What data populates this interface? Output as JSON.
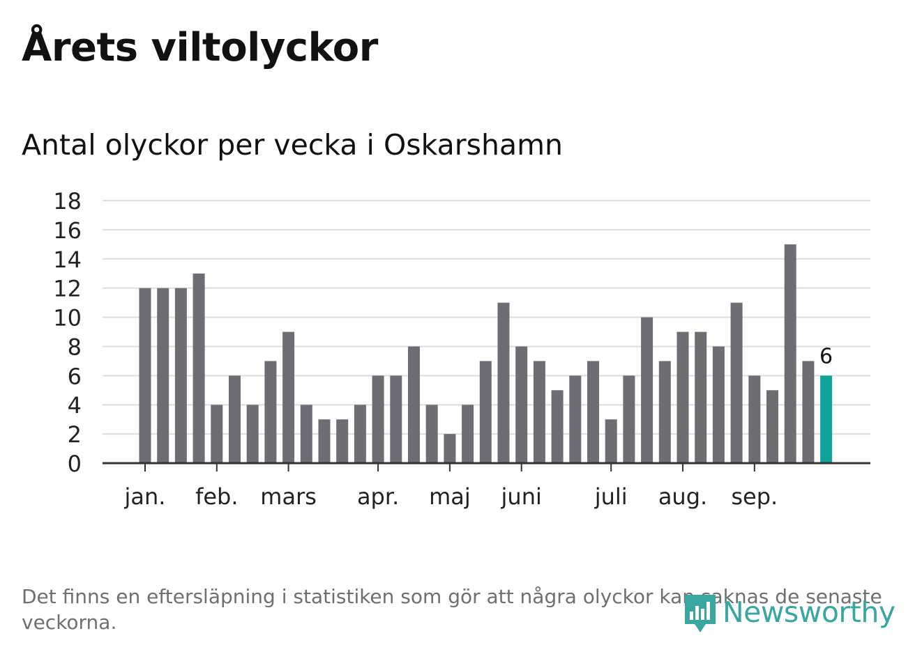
{
  "title": "Årets viltolyckor",
  "subtitle": "Antal olyckor per vecka i Oskarshamn",
  "note": "Det finns en eftersläpning i statistiken som gör att några olyckor kan saknas de senaste veckorna.",
  "brand": {
    "name": "Newsworthy",
    "icon": "newsworthy-bar-chart-icon",
    "color": "#3aa6a0"
  },
  "colors": {
    "bar": "#6e6d74",
    "highlight": "#0fa39a",
    "grid": "#dddddd",
    "axis": "#333333"
  },
  "chart_data": {
    "type": "bar",
    "title": "Årets viltolyckor",
    "subtitle": "Antal olyckor per vecka i Oskarshamn",
    "values": [
      12,
      12,
      12,
      13,
      4,
      6,
      4,
      7,
      9,
      4,
      3,
      3,
      4,
      6,
      6,
      8,
      4,
      2,
      4,
      7,
      11,
      8,
      7,
      5,
      6,
      7,
      3,
      6,
      10,
      7,
      9,
      9,
      8,
      11,
      6,
      5,
      15,
      7,
      6
    ],
    "ylim": [
      0,
      18
    ],
    "yticks": [
      0,
      2,
      4,
      6,
      8,
      10,
      12,
      14,
      16,
      18
    ],
    "month_labels": [
      {
        "label": "jan.",
        "week": 1
      },
      {
        "label": "feb.",
        "week": 5
      },
      {
        "label": "mars",
        "week": 9
      },
      {
        "label": "apr.",
        "week": 14
      },
      {
        "label": "maj",
        "week": 18
      },
      {
        "label": "juni",
        "week": 22
      },
      {
        "label": "juli",
        "week": 27
      },
      {
        "label": "aug.",
        "week": 31
      },
      {
        "label": "sep.",
        "week": 35
      }
    ],
    "highlight_last": true,
    "last_value_label": "6",
    "grid": true
  }
}
